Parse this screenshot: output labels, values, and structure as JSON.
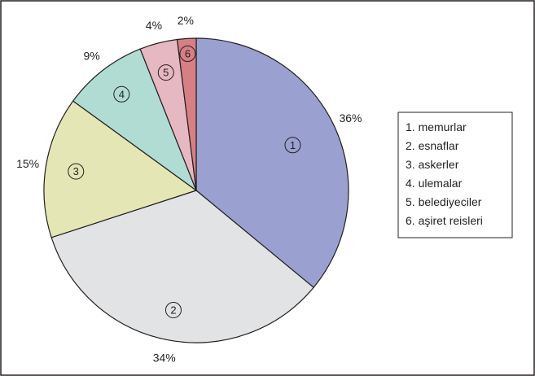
{
  "chart_data": {
    "type": "pie",
    "categories": [
      "1",
      "2",
      "3",
      "4",
      "5",
      "6"
    ],
    "values": [
      36,
      34,
      15,
      9,
      4,
      2
    ],
    "value_labels": [
      "36%",
      "34%",
      "15%",
      "9%",
      "4%",
      "2%"
    ],
    "colors": [
      "#9aa0cf",
      "#e2e3e5",
      "#e5e6b6",
      "#b1dcd4",
      "#e6b8c2",
      "#d67f85"
    ],
    "legend": [
      "1. memurlar",
      "2. esnaflar",
      "3. askerler",
      "4. ulemalar",
      "5. belediyeciler",
      "6. aşiret reisleri"
    ],
    "legend_position": "right",
    "start_angle": "12 o'clock",
    "direction": "clockwise"
  }
}
